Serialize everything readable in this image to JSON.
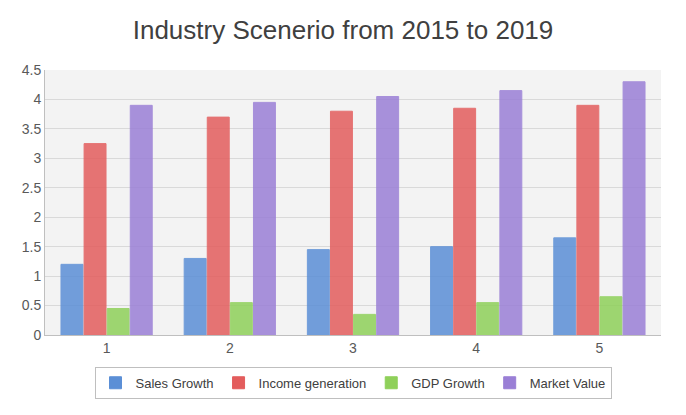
{
  "chart_data": {
    "type": "bar",
    "title": "Industry Scenerio from 2015 to 2019",
    "categories": [
      "1",
      "2",
      "3",
      "4",
      "5"
    ],
    "series": [
      {
        "name": "Sales Growth",
        "color": "#5b8fd6",
        "values": [
          1.2,
          1.3,
          1.45,
          1.5,
          1.65
        ]
      },
      {
        "name": "Income generation",
        "color": "#e35d5d",
        "values": [
          3.25,
          3.7,
          3.8,
          3.85,
          3.9
        ]
      },
      {
        "name": "GDP Growth",
        "color": "#8fd05a",
        "values": [
          0.45,
          0.55,
          0.35,
          0.55,
          0.65
        ]
      },
      {
        "name": "Market Value",
        "color": "#9a7fd6",
        "values": [
          3.9,
          3.95,
          4.05,
          4.15,
          4.3
        ]
      }
    ],
    "ylim": [
      0,
      4.5
    ],
    "yticks": [
      0,
      0.5,
      1,
      1.5,
      2,
      2.5,
      3,
      3.5,
      4,
      4.5
    ],
    "grid": true,
    "legend": "bottom"
  }
}
